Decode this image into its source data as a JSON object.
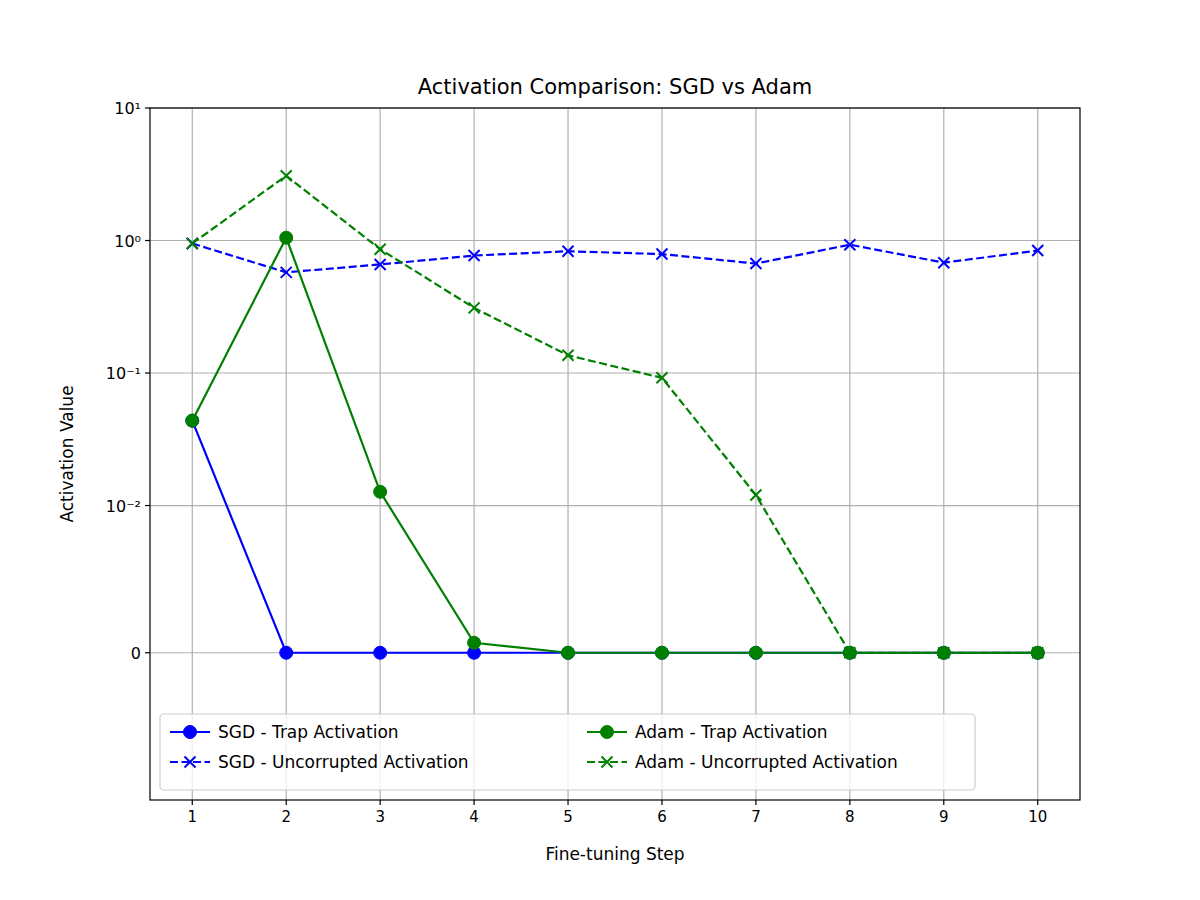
{
  "chart_data": {
    "type": "line",
    "title": "Activation Comparison: SGD vs Adam",
    "x_label": "Fine-tuning Step",
    "y_label": "Activation Value",
    "x": [
      1,
      2,
      3,
      4,
      5,
      6,
      7,
      8,
      9,
      10
    ],
    "xlim": [
      0.55,
      10.45
    ],
    "xticks": [
      1,
      2,
      3,
      4,
      5,
      6,
      7,
      8,
      9,
      10
    ],
    "ylim": [
      -0.01,
      10
    ],
    "yticks": [
      0,
      {
        "value": 0.01,
        "label": "10⁻²"
      },
      {
        "value": 0.1,
        "label": "10⁻¹"
      },
      {
        "value": 1,
        "label": "10⁰"
      },
      {
        "value": 10,
        "label": "10¹"
      }
    ],
    "log": "y",
    "grid": true,
    "legend": "lower left",
    "series": [
      {
        "name": "SGD - Trap Activation",
        "color": "#0000ff",
        "marker": "circle",
        "line_style": "solid",
        "values": [
          0.0437,
          0,
          0,
          0,
          0,
          0,
          0,
          0,
          0,
          0
        ]
      },
      {
        "name": "SGD - Uncorrupted Activation",
        "color": "#0000ff",
        "marker": "x",
        "line_style": "dashed",
        "values": [
          0.95,
          0.575,
          0.66,
          0.77,
          0.83,
          0.79,
          0.67,
          0.93,
          0.68,
          0.84
        ]
      },
      {
        "name": "Adam - Trap Activation",
        "color": "#008000",
        "marker": "circle",
        "line_style": "solid",
        "values": [
          0.0437,
          1.05,
          0.0127,
          0.00068,
          0,
          0,
          0,
          0,
          0,
          0
        ]
      },
      {
        "name": "Adam - Uncorrupted Activation",
        "color": "#008000",
        "marker": "x",
        "line_style": "dashed",
        "values": [
          0.95,
          3.08,
          0.86,
          0.31,
          0.136,
          0.092,
          0.012,
          0,
          0,
          0
        ]
      }
    ]
  }
}
